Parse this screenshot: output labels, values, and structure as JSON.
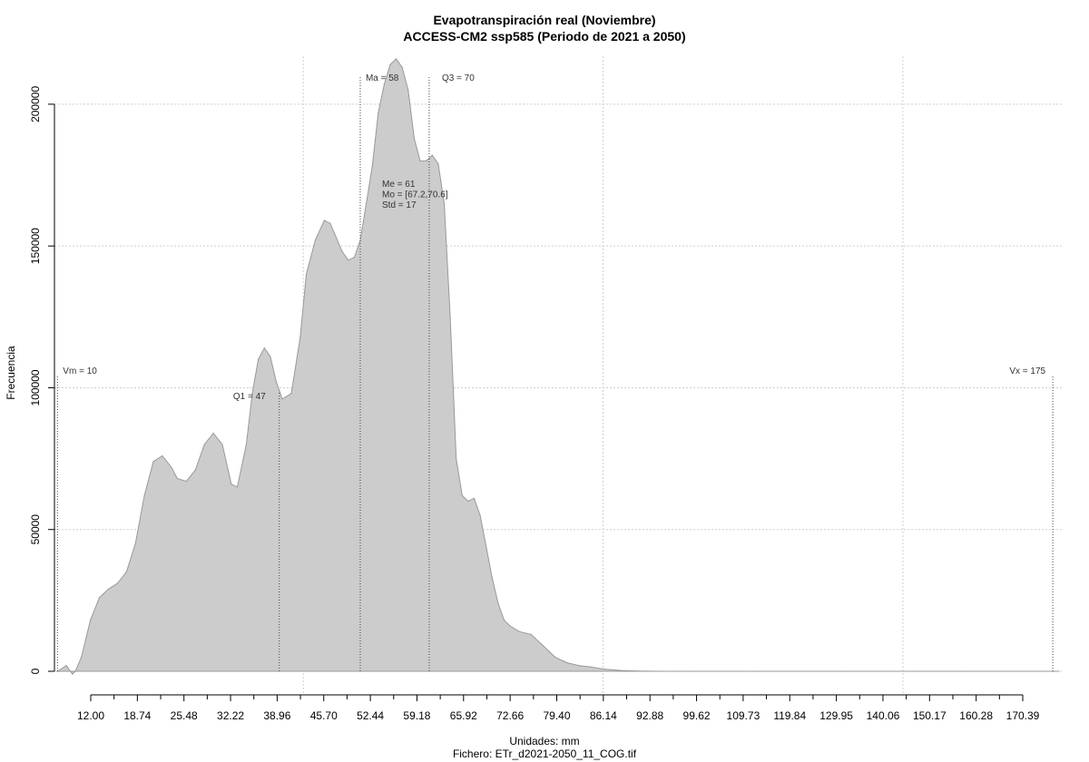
{
  "chart_data": {
    "type": "area",
    "title": "Evapotranspiración real (Noviembre)",
    "subtitle": "ACCESS-CM2 ssp585 (Periodo de 2021 a 2050)",
    "xlabel": "Unidades: mm",
    "footer": "Fichero: ETr_d2021-2050_11_COG.tif",
    "ylabel": "Frecuencia",
    "xlim": [
      8.5,
      176.5
    ],
    "ylim": [
      0,
      215000
    ],
    "grid": true,
    "fill_color": "#cccccc",
    "line_color": "#999999",
    "x_ticks": [
      "12.00",
      "18.74",
      "25.48",
      "32.22",
      "38.96",
      "45.70",
      "52.44",
      "59.18",
      "65.92",
      "72.66",
      "79.40",
      "86.14",
      "92.88",
      "99.62",
      "109.73",
      "119.84",
      "129.95",
      "140.06",
      "150.17",
      "160.28",
      "170.39"
    ],
    "y_ticks": [
      "0",
      "50000",
      "100000",
      "150000",
      "200000"
    ],
    "series": [
      {
        "x": [
          9.0,
          10.5,
          11.5,
          12.0,
          13.0,
          14.5,
          16.0,
          17.5,
          19.0,
          20.5,
          22.0,
          23.5,
          25.0,
          26.5,
          28.0,
          29.0,
          30.5,
          32.0,
          33.5,
          35.0,
          36.5,
          38.0,
          39.0,
          40.5,
          41.5,
          42.5,
          43.5,
          44.5,
          45.5,
          46.5,
          48.0,
          49.5,
          50.5,
          52.0,
          53.5,
          54.5,
          55.5,
          56.5,
          57.5,
          58.5,
          59.5,
          60.5,
          61.5,
          62.5,
          63.5,
          64.5,
          65.5,
          66.5,
          67.5,
          68.5,
          69.5,
          70.5,
          71.5,
          72.5,
          73.5,
          74.5,
          75.5,
          76.5,
          77.5,
          78.5,
          79.5,
          80.5,
          81.5,
          82.5,
          83.5,
          84.5,
          86.0,
          88.0,
          90.0,
          92.0,
          94.0,
          96.0,
          98.0,
          100.0,
          103.0,
          106.0,
          110.0,
          115.0,
          125.0,
          140.0,
          160.0,
          176.0
        ],
        "y": [
          0,
          2000,
          -1000,
          0,
          5000,
          18000,
          26000,
          29000,
          31000,
          35000,
          45000,
          62000,
          74000,
          76000,
          72000,
          68000,
          67000,
          71000,
          80000,
          84000,
          80000,
          66000,
          65000,
          80000,
          98000,
          110000,
          114000,
          111000,
          102000,
          96000,
          98000,
          118000,
          140000,
          152000,
          159000,
          158000,
          153000,
          148000,
          145000,
          146000,
          152000,
          165000,
          178000,
          197000,
          207000,
          214000,
          216000,
          213000,
          205000,
          188000,
          180000,
          180000,
          182000,
          179000,
          165000,
          125000,
          75000,
          62000,
          60000,
          61000,
          55000,
          44000,
          33000,
          24000,
          18000,
          16000,
          14000,
          13000,
          9000,
          5000,
          3000,
          2000,
          1500,
          800,
          300,
          100,
          0,
          0,
          0,
          0,
          0,
          0
        ]
      }
    ],
    "vlines": [
      {
        "label": "Vm = 10",
        "x": 9.0
      },
      {
        "label": "Q1 = 47",
        "x": 46.0
      },
      {
        "label": "Ma = 58",
        "x": 59.5
      },
      {
        "label": "Q3 = 70",
        "x": 71.0
      },
      {
        "label": "Vx = 175",
        "x": 175.0
      }
    ],
    "stats": [
      "Me = 61",
      "Mo = [67.2,70.6]",
      "Std = 17"
    ]
  }
}
